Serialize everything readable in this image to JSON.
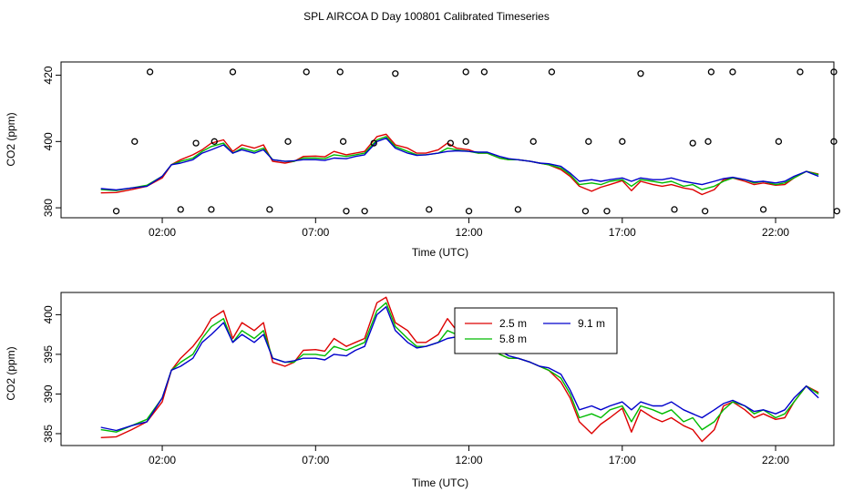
{
  "title": "SPL AIRCOA D  Day 100801  Calibrated Timeseries",
  "colors": {
    "s1": "#dd0000",
    "s2": "#00bb00",
    "s3": "#0000cc",
    "points": "#000000"
  },
  "chart_data": [
    {
      "type": "line",
      "name": "top-panel",
      "xlabel": "Time (UTC)",
      "ylabel": "CO2 (ppm)",
      "xlim": [
        -1.3,
        23.9
      ],
      "ylim": [
        377,
        424
      ],
      "xticks": [
        2,
        7,
        12,
        17,
        22
      ],
      "xticklabels": [
        "02:00",
        "07:00",
        "12:00",
        "17:00",
        "22:00"
      ],
      "yticks": [
        380,
        400,
        420
      ],
      "yticklabels": [
        "380",
        "400",
        "420"
      ],
      "series": [
        {
          "name": "2.5 m",
          "color": "#dd0000",
          "x": [
            0,
            0.5,
            1,
            1.5,
            2,
            2.3,
            2.6,
            3,
            3.3,
            3.6,
            4,
            4.3,
            4.6,
            5,
            5.3,
            5.6,
            6,
            6.3,
            6.6,
            7,
            7.3,
            7.6,
            8,
            8.3,
            8.6,
            9,
            9.3,
            9.6,
            10,
            10.3,
            10.6,
            11,
            11.3,
            11.6,
            12,
            12.3,
            12.6,
            13,
            13.3,
            13.6,
            14,
            14.3,
            14.6,
            15,
            15.3,
            15.6,
            16,
            16.3,
            16.6,
            17,
            17.3,
            17.6,
            18,
            18.3,
            18.6,
            19,
            19.3,
            19.6,
            20,
            20.3,
            20.6,
            21,
            21.3,
            21.6,
            22,
            22.3,
            22.6,
            23,
            23.4
          ],
          "y": [
            384.5,
            384.6,
            385.5,
            386.5,
            389,
            393,
            394.5,
            396,
            397.5,
            399.5,
            400.5,
            397,
            399,
            398,
            399,
            394,
            393.5,
            394,
            395.5,
            395.6,
            395.4,
            397,
            396,
            396.5,
            397,
            401.5,
            402.2,
            399,
            398,
            396.5,
            396.5,
            397.5,
            399.5,
            398,
            397.5,
            396.5,
            396.5,
            395,
            394.5,
            394.5,
            394,
            393.5,
            393,
            391.5,
            389.5,
            386.5,
            385,
            386.2,
            387,
            388.2,
            385.2,
            388,
            387,
            386.5,
            387,
            386,
            385.5,
            384,
            385.5,
            388.5,
            389,
            388,
            387,
            387.5,
            386.8,
            387,
            389,
            391,
            390.2
          ]
        },
        {
          "name": "5.8 m",
          "color": "#00bb00",
          "x": [
            0,
            0.5,
            1,
            1.5,
            2,
            2.3,
            2.6,
            3,
            3.3,
            3.6,
            4,
            4.3,
            4.6,
            5,
            5.3,
            5.6,
            6,
            6.3,
            6.6,
            7,
            7.3,
            7.6,
            8,
            8.3,
            8.6,
            9,
            9.3,
            9.6,
            10,
            10.3,
            10.6,
            11,
            11.3,
            11.6,
            12,
            12.3,
            12.6,
            13,
            13.3,
            13.6,
            14,
            14.3,
            14.6,
            15,
            15.3,
            15.6,
            16,
            16.3,
            16.6,
            17,
            17.3,
            17.6,
            18,
            18.3,
            18.6,
            19,
            19.3,
            19.6,
            20,
            20.3,
            20.6,
            21,
            21.3,
            21.6,
            22,
            22.3,
            22.6,
            23,
            23.4
          ],
          "y": [
            385.5,
            385.2,
            386,
            386.8,
            389.5,
            393,
            394,
            395,
            397,
            398.5,
            399.5,
            396.5,
            398,
            397,
            398,
            394.5,
            394,
            394,
            395,
            395,
            394.8,
            396,
            395.5,
            396,
            396.5,
            400.5,
            401.5,
            398.5,
            397,
            396,
            396,
            396.5,
            398,
            397.5,
            397,
            396.5,
            396.5,
            395,
            394.5,
            394.5,
            394,
            393.5,
            393,
            392,
            390,
            387,
            387.5,
            387,
            388,
            388.5,
            386.5,
            388.5,
            388,
            387.5,
            388,
            386.5,
            387,
            385.5,
            386.5,
            388,
            389,
            388.5,
            387.5,
            388,
            387,
            387.5,
            389,
            391,
            390
          ]
        },
        {
          "name": "9.1 m",
          "color": "#0000cc",
          "x": [
            0,
            0.5,
            1,
            1.5,
            2,
            2.3,
            2.6,
            3,
            3.3,
            3.6,
            4,
            4.3,
            4.6,
            5,
            5.3,
            5.6,
            6,
            6.3,
            6.6,
            7,
            7.3,
            7.6,
            8,
            8.3,
            8.6,
            9,
            9.3,
            9.6,
            10,
            10.3,
            10.6,
            11,
            11.3,
            11.6,
            12,
            12.3,
            12.6,
            13,
            13.3,
            13.6,
            14,
            14.3,
            14.6,
            15,
            15.3,
            15.6,
            16,
            16.3,
            16.6,
            17,
            17.3,
            17.6,
            18,
            18.3,
            18.6,
            19,
            19.3,
            19.6,
            20,
            20.3,
            20.6,
            21,
            21.3,
            21.6,
            22,
            22.3,
            22.6,
            23,
            23.4
          ],
          "y": [
            385.8,
            385.4,
            386,
            386.5,
            389.5,
            393,
            393.5,
            394.5,
            396.5,
            397.5,
            399,
            396.5,
            397.5,
            396.5,
            397.5,
            394.5,
            394,
            394.2,
            394.5,
            394.5,
            394.3,
            395,
            394.8,
            395.5,
            396,
            400,
            401,
            398,
            396.5,
            395.8,
            396,
            396.5,
            397,
            397.2,
            397,
            396.8,
            396.8,
            395.5,
            394.8,
            394.5,
            394,
            393.5,
            393.3,
            392.5,
            390.5,
            388,
            388.5,
            388,
            388.5,
            389,
            388,
            389,
            388.5,
            388.5,
            389,
            388,
            387.5,
            387,
            388,
            388.8,
            389.2,
            388.5,
            387.8,
            388,
            387.5,
            388,
            389.5,
            391,
            389.5
          ]
        }
      ],
      "scatter": {
        "x": [
          0.5,
          1.1,
          1.6,
          2.6,
          3.1,
          3.6,
          3.7,
          4.3,
          5.5,
          6.1,
          6.7,
          7.8,
          7.9,
          8.0,
          8.6,
          8.9,
          9.6,
          10.7,
          11.4,
          11.9,
          11.9,
          12.0,
          12.5,
          13.6,
          14.1,
          14.7,
          15.8,
          15.9,
          16.5,
          17.0,
          17.6,
          18.7,
          19.3,
          19.7,
          19.8,
          19.9,
          20.6,
          21.6,
          22.1,
          22.8,
          23.9,
          23.9,
          24.0
        ],
        "y": [
          379,
          400,
          421,
          379.5,
          399.5,
          379.5,
          400,
          421,
          379.5,
          400,
          421,
          421,
          400,
          379,
          379,
          399.5,
          420.5,
          379.5,
          399.5,
          400,
          421,
          379,
          421,
          379.5,
          400,
          421,
          379,
          400,
          379,
          400,
          420.5,
          379.5,
          399.5,
          379,
          400,
          421,
          421,
          379.5,
          400,
          421,
          421,
          400,
          379
        ]
      }
    },
    {
      "type": "line",
      "name": "bottom-panel",
      "xlabel": "Time (UTC)",
      "ylabel": "CO2 (ppm)",
      "xlim": [
        -1.3,
        23.9
      ],
      "ylim": [
        383.5,
        402.8
      ],
      "xticks": [
        2,
        7,
        12,
        17,
        22
      ],
      "xticklabels": [
        "02:00",
        "07:00",
        "12:00",
        "17:00",
        "22:00"
      ],
      "yticks": [
        385,
        390,
        395,
        400
      ],
      "yticklabels": [
        "385",
        "390",
        "395",
        "400"
      ],
      "legend": {
        "position": "top-right-center",
        "entries": [
          "2.5 m",
          "5.8 m",
          "9.1 m"
        ]
      },
      "series_ref": "same as top-panel series"
    }
  ]
}
